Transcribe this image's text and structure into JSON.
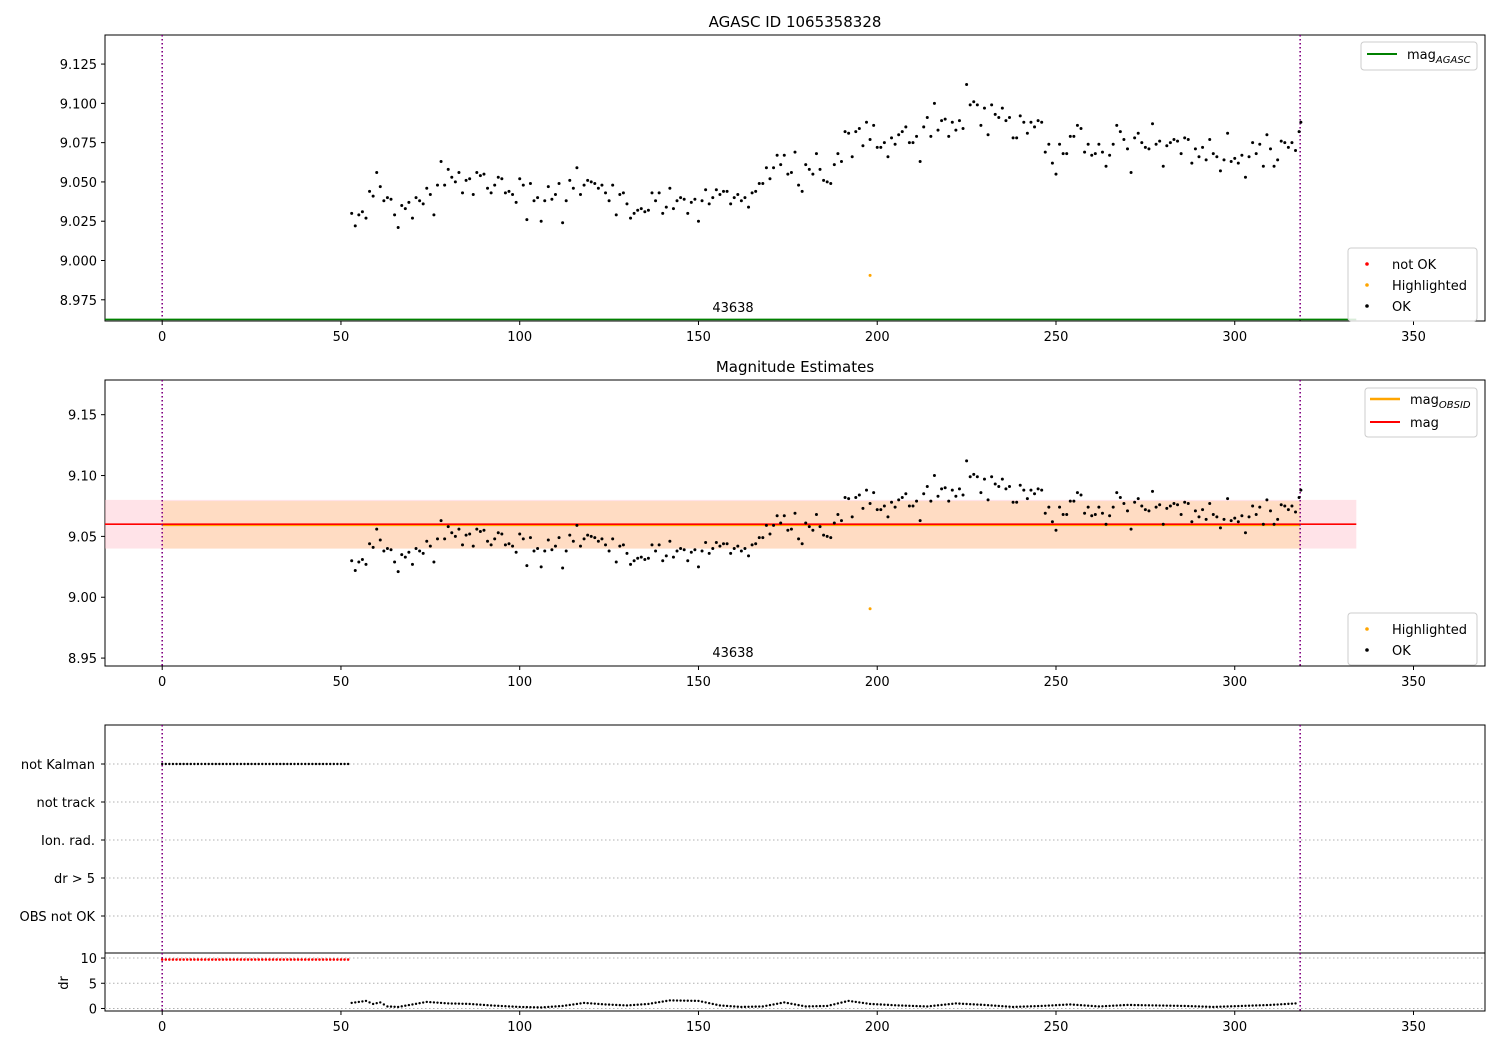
{
  "colors": {
    "ok": "#000000",
    "not_ok": "#ff0000",
    "highlighted": "#ffa500",
    "mag_agasc": "#008000",
    "mag_obsid": "#ffa500",
    "mag": "#ff0000",
    "obs_boundary": "#800080",
    "mag_band": "#ffc0cb",
    "obsid_band": "#ffdab9"
  },
  "chart_data": [
    {
      "type": "scatter",
      "title": "AGASC ID 1065358328",
      "xlim": [
        -16,
        370
      ],
      "ylim": [
        8.9615,
        9.1435
      ],
      "xticks": [
        "0",
        "50",
        "100",
        "150",
        "200",
        "250",
        "300",
        "350"
      ],
      "yticks": [
        "8.975",
        "9.000",
        "9.025",
        "9.050",
        "9.075",
        "9.100",
        "9.125"
      ],
      "obs_boundaries": [
        0,
        318.3
      ],
      "obsid_label": "43638",
      "legend_lines": [
        {
          "name": "mag_AGASC",
          "color": "#008000"
        }
      ],
      "legend_points": [
        {
          "name": "not OK",
          "color": "#ff0000"
        },
        {
          "name": "Highlighted",
          "color": "#ffa500"
        },
        {
          "name": "OK",
          "color": "#000000"
        }
      ],
      "hlines": [
        {
          "name": "mag_AGASC",
          "y": 8.9625,
          "x": [
            -16,
            334
          ],
          "color": "#008000"
        }
      ],
      "highlighted": [
        [
          198,
          8.9905
        ]
      ]
    },
    {
      "type": "scatter",
      "title": "Magnitude Estimates",
      "xlim": [
        -16,
        370
      ],
      "ylim": [
        8.9435,
        9.1785
      ],
      "xticks": [
        "0",
        "50",
        "100",
        "150",
        "200",
        "250",
        "300",
        "350"
      ],
      "yticks": [
        "8.95",
        "9.00",
        "9.05",
        "9.10",
        "9.15"
      ],
      "obs_boundaries": [
        0,
        318.3
      ],
      "obsid_label": "43638",
      "legend_lines": [
        {
          "name": "mag_OBSID",
          "color": "#ffa500"
        },
        {
          "name": "mag",
          "color": "#ff0000"
        }
      ],
      "legend_points": [
        {
          "name": "Highlighted",
          "color": "#ffa500"
        },
        {
          "name": "OK",
          "color": "#000000"
        }
      ],
      "mag": {
        "value": 9.06,
        "band": [
          9.04,
          9.08
        ],
        "x": [
          -16,
          334
        ]
      },
      "mag_obsid": {
        "value": 9.0595,
        "band": [
          9.04,
          9.079
        ],
        "x": [
          0,
          318.3
        ]
      },
      "highlighted": [
        [
          198,
          8.9905
        ]
      ]
    },
    {
      "type": "scatter",
      "title": "",
      "xlim": [
        -16,
        370
      ],
      "xticks": [
        "0",
        "50",
        "100",
        "150",
        "200",
        "250",
        "300",
        "350"
      ],
      "flag_labels": [
        "not Kalman",
        "not track",
        "Ion. rad.",
        "dr > 5",
        "OBS not OK"
      ],
      "obs_boundaries": [
        0,
        318.3
      ],
      "not_kalman_x_range": [
        0,
        52
      ]
    },
    {
      "type": "scatter",
      "title": "",
      "ylabel": "dr",
      "xlim": [
        -16,
        370
      ],
      "ylim": [
        -0.5,
        11
      ],
      "xticks": [
        "0",
        "50",
        "100",
        "150",
        "200",
        "250",
        "300",
        "350"
      ],
      "yticks": [
        "0",
        "5",
        "10"
      ],
      "obs_boundaries": [
        0,
        318.3
      ],
      "dr_flagged": {
        "x_range": [
          0,
          52
        ],
        "value": 9.7
      },
      "dr_tracked": [
        [
          53,
          1.1
        ],
        [
          55,
          1.3
        ],
        [
          57,
          1.5
        ],
        [
          59,
          0.9
        ],
        [
          61,
          1.2
        ],
        [
          63,
          0.4
        ],
        [
          66,
          0.3
        ],
        [
          70,
          0.8
        ],
        [
          74,
          1.3
        ],
        [
          80,
          1.0
        ],
        [
          86,
          0.9
        ],
        [
          92,
          0.6
        ],
        [
          100,
          0.3
        ],
        [
          106,
          0.2
        ],
        [
          112,
          0.5
        ],
        [
          118,
          1.1
        ],
        [
          124,
          0.8
        ],
        [
          130,
          0.6
        ],
        [
          136,
          0.9
        ],
        [
          142,
          1.6
        ],
        [
          150,
          1.5
        ],
        [
          156,
          0.6
        ],
        [
          162,
          0.3
        ],
        [
          168,
          0.4
        ],
        [
          174,
          1.2
        ],
        [
          180,
          0.4
        ],
        [
          186,
          0.5
        ],
        [
          192,
          1.5
        ],
        [
          198,
          0.9
        ],
        [
          206,
          0.6
        ],
        [
          214,
          0.4
        ],
        [
          222,
          1.0
        ],
        [
          230,
          0.7
        ],
        [
          238,
          0.3
        ],
        [
          246,
          0.5
        ],
        [
          254,
          0.8
        ],
        [
          262,
          0.4
        ],
        [
          270,
          0.7
        ],
        [
          278,
          0.6
        ],
        [
          286,
          0.5
        ],
        [
          294,
          0.3
        ],
        [
          302,
          0.5
        ],
        [
          310,
          0.7
        ],
        [
          317,
          1.0
        ]
      ]
    }
  ],
  "mag_series": [
    [
      53,
      9.03
    ],
    [
      54,
      9.022
    ],
    [
      55,
      9.029
    ],
    [
      56,
      9.031
    ],
    [
      57,
      9.027
    ],
    [
      58,
      9.044
    ],
    [
      59,
      9.041
    ],
    [
      60,
      9.056
    ],
    [
      61,
      9.047
    ],
    [
      62,
      9.038
    ],
    [
      63,
      9.04
    ],
    [
      64,
      9.039
    ],
    [
      65,
      9.029
    ],
    [
      66,
      9.021
    ],
    [
      67,
      9.035
    ],
    [
      68,
      9.033
    ],
    [
      69,
      9.037
    ],
    [
      70,
      9.027
    ],
    [
      71,
      9.04
    ],
    [
      72,
      9.038
    ],
    [
      73,
      9.036
    ],
    [
      74,
      9.046
    ],
    [
      75,
      9.042
    ],
    [
      76,
      9.029
    ],
    [
      77,
      9.048
    ],
    [
      78,
      9.063
    ],
    [
      79,
      9.048
    ],
    [
      80,
      9.058
    ],
    [
      81,
      9.053
    ],
    [
      82,
      9.05
    ],
    [
      83,
      9.056
    ],
    [
      84,
      9.043
    ],
    [
      85,
      9.051
    ],
    [
      86,
      9.052
    ],
    [
      87,
      9.042
    ],
    [
      88,
      9.056
    ],
    [
      89,
      9.054
    ],
    [
      90,
      9.055
    ],
    [
      91,
      9.046
    ],
    [
      92,
      9.043
    ],
    [
      93,
      9.048
    ],
    [
      94,
      9.053
    ],
    [
      95,
      9.052
    ],
    [
      96,
      9.043
    ],
    [
      97,
      9.044
    ],
    [
      98,
      9.042
    ],
    [
      99,
      9.037
    ],
    [
      100,
      9.052
    ],
    [
      101,
      9.048
    ],
    [
      102,
      9.026
    ],
    [
      103,
      9.049
    ],
    [
      104,
      9.038
    ],
    [
      105,
      9.04
    ],
    [
      106,
      9.025
    ],
    [
      107,
      9.038
    ],
    [
      108,
      9.047
    ],
    [
      109,
      9.039
    ],
    [
      110,
      9.042
    ],
    [
      111,
      9.049
    ],
    [
      112,
      9.024
    ],
    [
      113,
      9.038
    ],
    [
      114,
      9.051
    ],
    [
      115,
      9.046
    ],
    [
      116,
      9.059
    ],
    [
      117,
      9.042
    ],
    [
      118,
      9.048
    ],
    [
      119,
      9.051
    ],
    [
      120,
      9.05
    ],
    [
      121,
      9.049
    ],
    [
      122,
      9.046
    ],
    [
      123,
      9.048
    ],
    [
      124,
      9.043
    ],
    [
      125,
      9.038
    ],
    [
      126,
      9.048
    ],
    [
      127,
      9.029
    ],
    [
      128,
      9.042
    ],
    [
      129,
      9.043
    ],
    [
      130,
      9.036
    ],
    [
      131,
      9.027
    ],
    [
      132,
      9.03
    ],
    [
      133,
      9.032
    ],
    [
      134,
      9.033
    ],
    [
      135,
      9.031
    ],
    [
      136,
      9.032
    ],
    [
      137,
      9.043
    ],
    [
      138,
      9.038
    ],
    [
      139,
      9.043
    ],
    [
      140,
      9.03
    ],
    [
      141,
      9.034
    ],
    [
      142,
      9.046
    ],
    [
      143,
      9.033
    ],
    [
      144,
      9.038
    ],
    [
      145,
      9.04
    ],
    [
      146,
      9.039
    ],
    [
      147,
      9.03
    ],
    [
      148,
      9.037
    ],
    [
      149,
      9.039
    ],
    [
      150,
      9.025
    ],
    [
      151,
      9.038
    ],
    [
      152,
      9.045
    ],
    [
      153,
      9.036
    ],
    [
      154,
      9.04
    ],
    [
      155,
      9.045
    ],
    [
      156,
      9.042
    ],
    [
      157,
      9.044
    ],
    [
      158,
      9.044
    ],
    [
      159,
      9.036
    ],
    [
      160,
      9.04
    ],
    [
      161,
      9.042
    ],
    [
      162,
      9.038
    ],
    [
      163,
      9.04
    ],
    [
      164,
      9.034
    ],
    [
      165,
      9.043
    ],
    [
      166,
      9.044
    ],
    [
      167,
      9.049
    ],
    [
      168,
      9.049
    ],
    [
      169,
      9.059
    ],
    [
      170,
      9.052
    ],
    [
      171,
      9.059
    ],
    [
      172,
      9.067
    ],
    [
      173,
      9.061
    ],
    [
      174,
      9.067
    ],
    [
      175,
      9.055
    ],
    [
      176,
      9.056
    ],
    [
      177,
      9.069
    ],
    [
      178,
      9.048
    ],
    [
      179,
      9.044
    ],
    [
      180,
      9.061
    ],
    [
      181,
      9.058
    ],
    [
      182,
      9.055
    ],
    [
      183,
      9.068
    ],
    [
      184,
      9.058
    ],
    [
      185,
      9.051
    ],
    [
      186,
      9.05
    ],
    [
      187,
      9.049
    ],
    [
      188,
      9.061
    ],
    [
      189,
      9.068
    ],
    [
      190,
      9.063
    ],
    [
      191,
      9.082
    ],
    [
      192,
      9.081
    ],
    [
      193,
      9.066
    ],
    [
      194,
      9.082
    ],
    [
      195,
      9.084
    ],
    [
      196,
      9.073
    ],
    [
      197,
      9.088
    ],
    [
      198,
      9.077
    ],
    [
      199,
      9.086
    ],
    [
      200,
      9.072
    ],
    [
      201,
      9.072
    ],
    [
      202,
      9.075
    ],
    [
      203,
      9.066
    ],
    [
      204,
      9.078
    ],
    [
      205,
      9.074
    ],
    [
      206,
      9.08
    ],
    [
      207,
      9.082
    ],
    [
      208,
      9.085
    ],
    [
      209,
      9.075
    ],
    [
      210,
      9.075
    ],
    [
      211,
      9.079
    ],
    [
      212,
      9.063
    ],
    [
      213,
      9.085
    ],
    [
      214,
      9.091
    ],
    [
      215,
      9.079
    ],
    [
      216,
      9.1
    ],
    [
      217,
      9.083
    ],
    [
      218,
      9.089
    ],
    [
      219,
      9.09
    ],
    [
      220,
      9.079
    ],
    [
      221,
      9.088
    ],
    [
      222,
      9.083
    ],
    [
      223,
      9.089
    ],
    [
      224,
      9.084
    ],
    [
      225,
      9.112
    ],
    [
      226,
      9.099
    ],
    [
      227,
      9.101
    ],
    [
      228,
      9.099
    ],
    [
      229,
      9.086
    ],
    [
      230,
      9.097
    ],
    [
      231,
      9.08
    ],
    [
      232,
      9.099
    ],
    [
      233,
      9.093
    ],
    [
      234,
      9.091
    ],
    [
      235,
      9.097
    ],
    [
      236,
      9.089
    ],
    [
      237,
      9.091
    ],
    [
      238,
      9.078
    ],
    [
      239,
      9.078
    ],
    [
      240,
      9.092
    ],
    [
      241,
      9.088
    ],
    [
      242,
      9.081
    ],
    [
      243,
      9.088
    ],
    [
      244,
      9.085
    ],
    [
      245,
      9.089
    ],
    [
      246,
      9.088
    ],
    [
      247,
      9.069
    ],
    [
      248,
      9.074
    ],
    [
      249,
      9.062
    ],
    [
      250,
      9.055
    ],
    [
      251,
      9.074
    ],
    [
      252,
      9.068
    ],
    [
      253,
      9.068
    ],
    [
      254,
      9.079
    ],
    [
      255,
      9.079
    ],
    [
      256,
      9.086
    ],
    [
      257,
      9.084
    ],
    [
      258,
      9.069
    ],
    [
      259,
      9.074
    ],
    [
      260,
      9.067
    ],
    [
      261,
      9.068
    ],
    [
      262,
      9.074
    ],
    [
      263,
      9.069
    ],
    [
      264,
      9.06
    ],
    [
      265,
      9.067
    ],
    [
      266,
      9.074
    ],
    [
      267,
      9.086
    ],
    [
      268,
      9.082
    ],
    [
      269,
      9.077
    ],
    [
      270,
      9.071
    ],
    [
      271,
      9.056
    ],
    [
      272,
      9.078
    ],
    [
      273,
      9.081
    ],
    [
      274,
      9.075
    ],
    [
      275,
      9.072
    ],
    [
      276,
      9.071
    ],
    [
      277,
      9.087
    ],
    [
      278,
      9.074
    ],
    [
      279,
      9.076
    ],
    [
      280,
      9.06
    ],
    [
      281,
      9.073
    ],
    [
      282,
      9.075
    ],
    [
      283,
      9.077
    ],
    [
      284,
      9.076
    ],
    [
      285,
      9.068
    ],
    [
      286,
      9.078
    ],
    [
      287,
      9.077
    ],
    [
      288,
      9.062
    ],
    [
      289,
      9.071
    ],
    [
      290,
      9.066
    ],
    [
      291,
      9.072
    ],
    [
      292,
      9.064
    ],
    [
      293,
      9.077
    ],
    [
      294,
      9.068
    ],
    [
      295,
      9.066
    ],
    [
      296,
      9.057
    ],
    [
      297,
      9.064
    ],
    [
      298,
      9.081
    ],
    [
      299,
      9.063
    ],
    [
      300,
      9.065
    ],
    [
      301,
      9.062
    ],
    [
      302,
      9.067
    ],
    [
      303,
      9.053
    ],
    [
      304,
      9.066
    ],
    [
      305,
      9.075
    ],
    [
      306,
      9.068
    ],
    [
      307,
      9.074
    ],
    [
      308,
      9.06
    ],
    [
      309,
      9.08
    ],
    [
      310,
      9.071
    ],
    [
      311,
      9.06
    ],
    [
      312,
      9.064
    ],
    [
      313,
      9.076
    ],
    [
      314,
      9.075
    ],
    [
      315,
      9.072
    ],
    [
      316,
      9.075
    ],
    [
      317,
      9.07
    ],
    [
      318,
      9.082
    ],
    [
      318.5,
      9.088
    ]
  ]
}
